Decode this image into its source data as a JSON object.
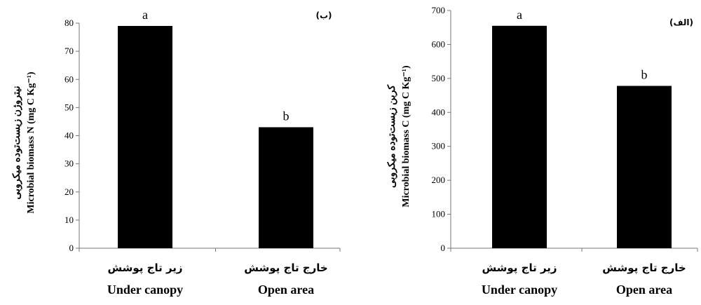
{
  "chart_data": [
    {
      "type": "bar",
      "panel_label": "(ب)",
      "categories": [
        {
          "fa": "زیر تاج پوشش",
          "en": "Under canopy"
        },
        {
          "fa": "خارج تاج پوشش",
          "en": "Open area"
        }
      ],
      "values": [
        79,
        43
      ],
      "significance": [
        "a",
        "b"
      ],
      "ylabel_fa": "نیتروژن زیست‌توده میکروبی",
      "ylabel_en": "Microbial biomass N (mg C Kg⁻¹)",
      "ylim": [
        0,
        80
      ],
      "yticks": [
        0,
        10,
        20,
        30,
        40,
        50,
        60,
        70,
        80
      ],
      "grid": false,
      "bar_color": "#000000"
    },
    {
      "type": "bar",
      "panel_label": "(الف)",
      "categories": [
        {
          "fa": "زیر تاج پوشش",
          "en": "Under canopy"
        },
        {
          "fa": "خارج تاج پوشش",
          "en": "Open area"
        }
      ],
      "values": [
        655,
        478
      ],
      "significance": [
        "a",
        "b"
      ],
      "ylabel_fa": "کربن زیست‌توده میکروبی",
      "ylabel_en": "Microbial biomass C (mg C Kg⁻¹)",
      "ylim": [
        0,
        700
      ],
      "yticks": [
        0,
        100,
        200,
        300,
        400,
        500,
        600,
        700
      ],
      "grid": false,
      "bar_color": "#000000"
    }
  ]
}
